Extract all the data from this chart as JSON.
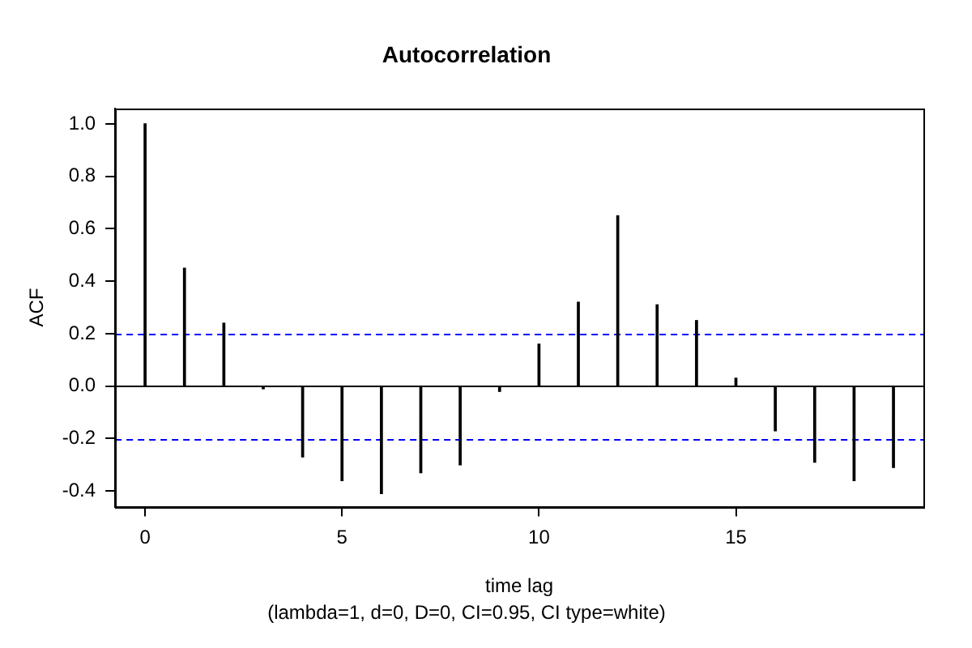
{
  "chart_data": {
    "type": "bar",
    "title": "Autocorrelation",
    "xlabel": "time lag",
    "ylabel": "ACF",
    "annotations": [
      "(lambda=1, d=0, D=0, CI=0.95, CI type=white)"
    ],
    "x": [
      0,
      1,
      2,
      3,
      4,
      5,
      6,
      7,
      8,
      9,
      10,
      11,
      12,
      13,
      14,
      15,
      16,
      17,
      18,
      19
    ],
    "values": [
      1.0,
      0.45,
      0.24,
      -0.01,
      -0.27,
      -0.36,
      -0.41,
      -0.33,
      -0.3,
      -0.02,
      0.16,
      0.32,
      0.65,
      0.31,
      0.25,
      0.03,
      -0.17,
      -0.29,
      -0.36,
      -0.31
    ],
    "color": "#000000",
    "xlim": [
      -0.76,
      19.76
    ],
    "xticks": [
      0,
      5,
      10,
      15
    ],
    "ylim": [
      -0.46,
      1.06
    ],
    "yticks": [
      -0.4,
      -0.2,
      {
        "value": 0,
        "label": "0.0"
      },
      0.2,
      0.4,
      0.6,
      0.8,
      {
        "value": 1,
        "label": "1.0"
      }
    ],
    "ref_lines": [
      {
        "axis": "y",
        "value": 0,
        "color": "#000000",
        "line_style": "solid"
      },
      {
        "axis": "y",
        "value": 0.2,
        "color": "#0000ff",
        "line_style": "dashed"
      },
      {
        "axis": "y",
        "value": -0.2,
        "color": "#0000ff",
        "line_style": "dashed"
      }
    ]
  }
}
